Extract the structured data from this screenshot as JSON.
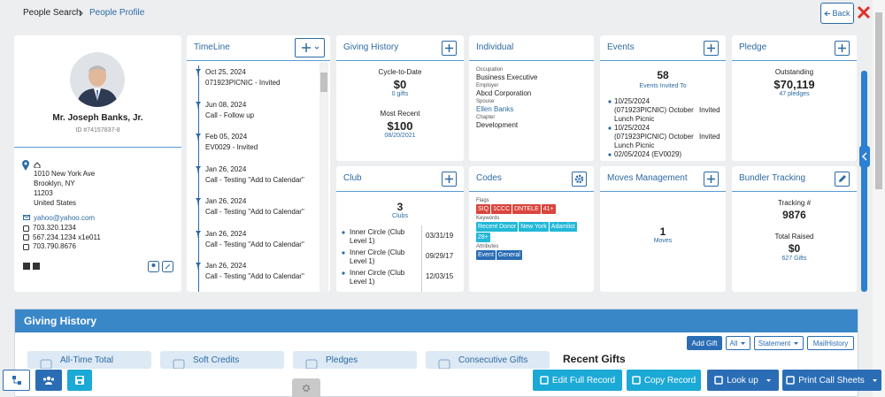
{
  "breadcrumb": {
    "parent": "People Search",
    "current": "People Profile"
  },
  "back_button": "Back",
  "profile": {
    "name": "Mr. Joseph Banks, Jr.",
    "id": "ID #74157837-8",
    "address": [
      "1010 New York Ave",
      "Brooklyn, NY",
      "11203",
      "United States"
    ],
    "email": "yahoo@yahoo.com",
    "phones": [
      "703.320.1234",
      "567.234.1234 x1e011",
      "703.790.8676"
    ]
  },
  "timeline": {
    "title": "TimeLine",
    "items": [
      {
        "date": "Oct 25, 2024",
        "text": "071923PICNIC - Invited"
      },
      {
        "date": "Jun 08, 2024",
        "text": "Call - Follow up"
      },
      {
        "date": "Feb 05, 2024",
        "text": "EV0029 - Invited"
      },
      {
        "date": "Jan 26, 2024",
        "text": "Call - Testing \"Add to Calendar\""
      },
      {
        "date": "Jan 26, 2024",
        "text": "Call - Testing \"Add to Calendar\""
      },
      {
        "date": "Jan 26, 2024",
        "text": "Call - Testing \"Add to Calendar\""
      },
      {
        "date": "Jan 26, 2024",
        "text": "Call - Testing \"Add to Calendar\""
      }
    ]
  },
  "giving_card": {
    "title": "Giving History",
    "cycle_label": "Cycle-to-Date",
    "cycle_amount": "$0",
    "cycle_gifts": "0 gifts",
    "recent_label": "Most Recent",
    "recent_amount": "$100",
    "recent_date": "08/20/2021"
  },
  "individual": {
    "title": "Individual",
    "fields": [
      {
        "label": "Occupation",
        "value": "Business Executive"
      },
      {
        "label": "Employer",
        "value": "Abcd Corporation"
      },
      {
        "label": "Spouse",
        "value": "Ellen Banks"
      },
      {
        "label": "Chapter",
        "value": "Development"
      }
    ]
  },
  "events": {
    "title": "Events",
    "count": "58",
    "count_label": "Events Invited To",
    "items": [
      {
        "text": "10/25/2024 (071923PICNIC) October Lunch Picnic",
        "status": "Invited"
      },
      {
        "text": "10/25/2024 (071923PICNIC) October Lunch Picnic",
        "status": "Invited"
      },
      {
        "text": "02/05/2024 (EV0029)"
      }
    ]
  },
  "pledge": {
    "title": "Pledge",
    "label": "Outstanding",
    "amount": "$70,119",
    "count": "47 pledges"
  },
  "club": {
    "title": "Club",
    "count": "3",
    "count_label": "Clubs",
    "items": [
      {
        "name": "Inner Circle (Club Level 1)",
        "date": "03/31/19"
      },
      {
        "name": "Inner Circle (Club Level 1)",
        "date": "09/29/17"
      },
      {
        "name": "Inner Circle (Club Level 1)",
        "date": "12/03/15"
      }
    ]
  },
  "codes": {
    "title": "Codes",
    "groups": [
      {
        "label": "Flags",
        "tags": [
          "SIQ",
          "1CCC",
          "DNTELE",
          "41+"
        ]
      },
      {
        "label": "Keywords",
        "tags": [
          "Recent Donor",
          "New York",
          "Adamlist",
          "28+"
        ]
      },
      {
        "label": "Attributes",
        "tags": [
          "Event",
          "General"
        ]
      }
    ]
  },
  "moves": {
    "title": "Moves Management",
    "count": "1",
    "count_label": "Moves"
  },
  "bundler": {
    "title": "Bundler Tracking",
    "tracking_label": "Tracking #",
    "tracking": "9876",
    "raised_label": "Total Raised",
    "raised": "$0",
    "gifts": "627 Gifts"
  },
  "giving_section": {
    "title": "Giving History",
    "buttons": [
      "Add Gift",
      "All",
      "Statement",
      "MailHistory"
    ],
    "tiles": [
      "All-Time Total",
      "Soft Credits",
      "Pledges",
      "Consecutive Gifts"
    ],
    "recent_gifts": "Recent Gifts"
  },
  "toolbar": [
    "Edit Full Record",
    "Copy Record",
    "Look up",
    "Print Call Sheets"
  ]
}
